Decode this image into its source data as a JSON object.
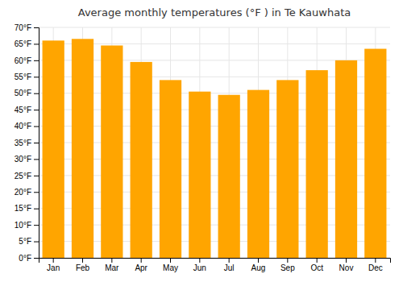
{
  "chart_data": {
    "type": "bar",
    "title": "Average monthly temperatures (°F ) in Te Kauwhata",
    "categories": [
      "Jan",
      "Feb",
      "Mar",
      "Apr",
      "May",
      "Jun",
      "Jul",
      "Aug",
      "Sep",
      "Oct",
      "Nov",
      "Dec"
    ],
    "values": [
      66,
      66.5,
      64.5,
      59.5,
      54,
      50.5,
      49.5,
      51,
      54,
      57,
      60,
      63.5
    ],
    "color": "#FFA500",
    "ylim": [
      0,
      70
    ],
    "yticks": [
      {
        "value": 0,
        "label": "0°F"
      },
      {
        "value": 5,
        "label": "5°F"
      },
      {
        "value": 10,
        "label": "10°F"
      },
      {
        "value": 15,
        "label": "15°F"
      },
      {
        "value": 20,
        "label": "20°F"
      },
      {
        "value": 25,
        "label": "25°F"
      },
      {
        "value": 30,
        "label": "30°F"
      },
      {
        "value": 35,
        "label": "35°F"
      },
      {
        "value": 40,
        "label": "40°F"
      },
      {
        "value": 45,
        "label": "45°F"
      },
      {
        "value": 50,
        "label": "50°F"
      },
      {
        "value": 55,
        "label": "55°F"
      },
      {
        "value": 60,
        "label": "60°F"
      },
      {
        "value": 65,
        "label": "65°F"
      },
      {
        "value": 70,
        "label": "70°F"
      }
    ],
    "grid": true
  }
}
